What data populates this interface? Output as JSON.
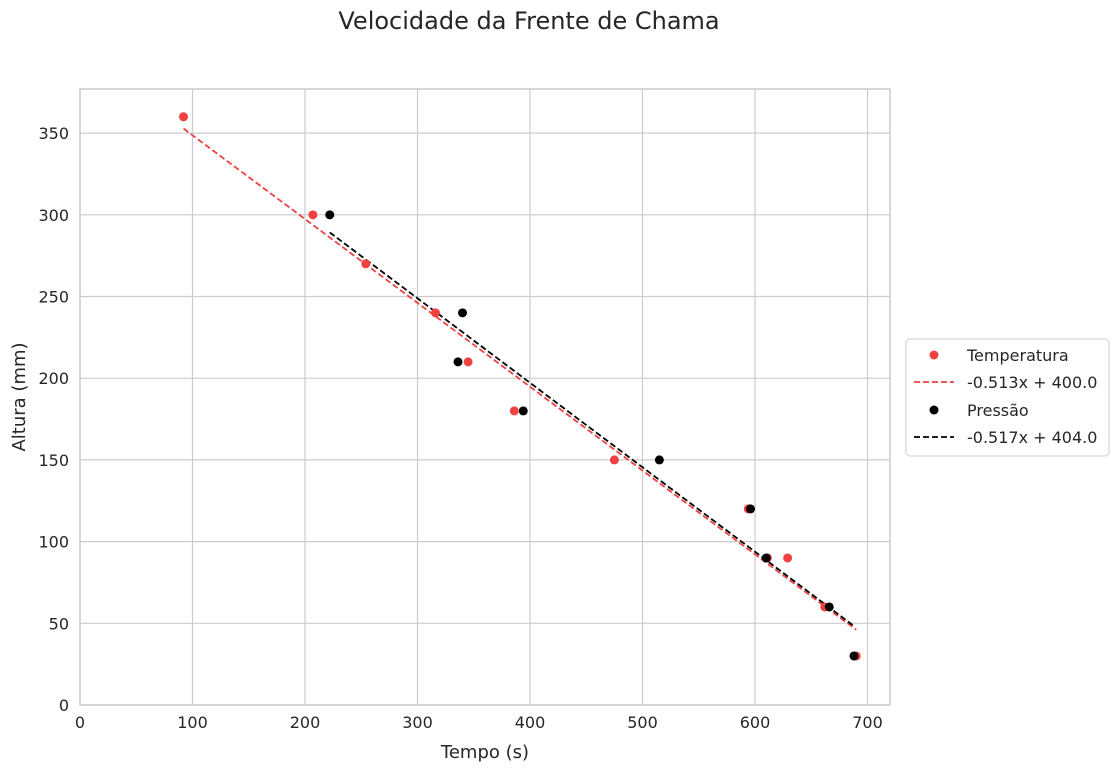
{
  "chart_data": {
    "type": "scatter",
    "title": "Velocidade da Frente de Chama",
    "xlabel": "Tempo (s)",
    "ylabel": "Altura (mm)",
    "xlim": [
      0,
      720
    ],
    "ylim": [
      0,
      377
    ],
    "xticks": [
      0,
      100,
      200,
      300,
      400,
      500,
      600,
      700
    ],
    "yticks": [
      0,
      50,
      100,
      150,
      200,
      250,
      300,
      350
    ],
    "grid": true,
    "legend_position": "right, outside plot",
    "series": [
      {
        "name": "Temperatura",
        "color": "#f04040",
        "marker": "circle",
        "points": [
          [
            92,
            360
          ],
          [
            207,
            300
          ],
          [
            254,
            270
          ],
          [
            316,
            240
          ],
          [
            345,
            210
          ],
          [
            386,
            180
          ],
          [
            475,
            150
          ],
          [
            594,
            120
          ],
          [
            611,
            90
          ],
          [
            629,
            90
          ],
          [
            662,
            60
          ],
          [
            690,
            30
          ]
        ],
        "fit": {
          "label": "-0.513x + 400.0",
          "slope": -0.513,
          "intercept": 400.0,
          "x_range": [
            92,
            690
          ],
          "style": "dashed"
        }
      },
      {
        "name": "Pressão",
        "color": "#000000",
        "marker": "circle",
        "points": [
          [
            222,
            300
          ],
          [
            340,
            240
          ],
          [
            336,
            210
          ],
          [
            394,
            180
          ],
          [
            515,
            150
          ],
          [
            596,
            120
          ],
          [
            610,
            90
          ],
          [
            666,
            60
          ],
          [
            688,
            30
          ]
        ],
        "fit": {
          "label": "-0.517x + 404.0",
          "slope": -0.517,
          "intercept": 404.0,
          "x_range": [
            222,
            688
          ],
          "style": "dashed"
        }
      }
    ]
  }
}
